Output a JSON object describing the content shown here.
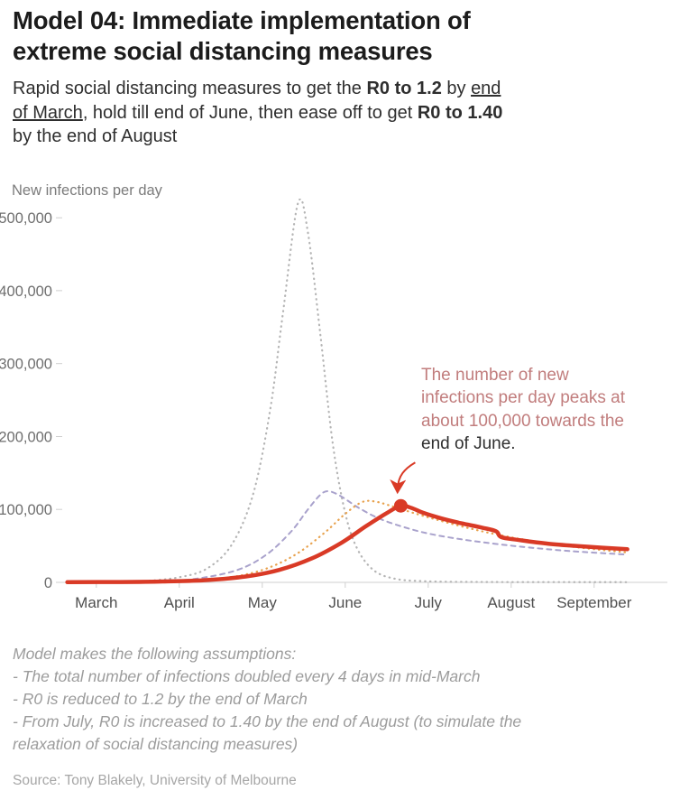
{
  "header": {
    "title_line1": "Model 04: Immediate implementation of",
    "title_line2": "extreme social distancing measures",
    "subtitle": {
      "seg1": "Rapid social distancing measures to get the ",
      "seg2_bold": "R0 to 1.2",
      "seg3": " by ",
      "seg4_underline": "end",
      "seg5_underline": "of March",
      "seg6": ", hold till end of June, then ease off to get ",
      "seg7_bold": "R0 to 1.40",
      "seg8": "by the end of August"
    }
  },
  "chart_data": {
    "type": "line",
    "title": "Model 04: Immediate implementation of extreme social distancing measures",
    "ylabel": "New infections per day",
    "xlabel": "",
    "x_unit": "months, 0 = March through 6 = September",
    "x_tick_labels": [
      "March",
      "April",
      "May",
      "June",
      "July",
      "August",
      "September"
    ],
    "y_ticks": [
      0,
      100000,
      200000,
      300000,
      400000,
      500000
    ],
    "y_tick_labels": [
      "0",
      "100,000",
      "200,000",
      "300,000",
      "400,000",
      "500,000"
    ],
    "ylim": [
      0,
      520000
    ],
    "grid": false,
    "legend": "none",
    "series": [
      {
        "id": "gray-dotted-unmitigated",
        "name": "gray dotted curve (peaks ~520,000 mid-May)",
        "style": "dotted",
        "color": "#b5b5b5",
        "width": 2.2,
        "points": [
          [
            -0.35,
            0
          ],
          [
            0,
            150
          ],
          [
            0.5,
            1200
          ],
          [
            1,
            7000
          ],
          [
            1.35,
            20000
          ],
          [
            1.65,
            55000
          ],
          [
            1.9,
            125000
          ],
          [
            2.1,
            240000
          ],
          [
            2.25,
            370000
          ],
          [
            2.43,
            520000
          ],
          [
            2.55,
            480000
          ],
          [
            2.7,
            340000
          ],
          [
            2.85,
            190000
          ],
          [
            3.0,
            95000
          ],
          [
            3.15,
            45000
          ],
          [
            3.35,
            16000
          ],
          [
            3.6,
            5000
          ],
          [
            3.9,
            1800
          ],
          [
            4.3,
            800
          ],
          [
            5,
            400
          ],
          [
            6.4,
            300
          ]
        ]
      },
      {
        "id": "purple-dashed",
        "name": "purple dashed curve (peaks ~125,000 late May)",
        "style": "dashed",
        "color": "#a9a2cc",
        "width": 2,
        "points": [
          [
            -0.35,
            0
          ],
          [
            0,
            100
          ],
          [
            0.7,
            1200
          ],
          [
            1.2,
            5000
          ],
          [
            1.7,
            17000
          ],
          [
            2.05,
            38000
          ],
          [
            2.35,
            70000
          ],
          [
            2.55,
            100000
          ],
          [
            2.7,
            120000
          ],
          [
            2.8,
            125000
          ],
          [
            2.95,
            118000
          ],
          [
            3.15,
            103000
          ],
          [
            3.4,
            88000
          ],
          [
            3.7,
            76000
          ],
          [
            4.0,
            67000
          ],
          [
            4.4,
            59000
          ],
          [
            4.8,
            53000
          ],
          [
            5.2,
            48000
          ],
          [
            5.7,
            43000
          ],
          [
            6.4,
            38000
          ]
        ]
      },
      {
        "id": "orange-dotted",
        "name": "orange dotted curve (peaks ~111,000 mid-June)",
        "style": "dotted",
        "color": "#e8a24e",
        "width": 2.2,
        "points": [
          [
            -0.35,
            0
          ],
          [
            0,
            80
          ],
          [
            0.9,
            1000
          ],
          [
            1.5,
            5000
          ],
          [
            2.0,
            17000
          ],
          [
            2.4,
            38000
          ],
          [
            2.75,
            68000
          ],
          [
            3.0,
            94000
          ],
          [
            3.2,
            110000
          ],
          [
            3.35,
            111000
          ],
          [
            3.55,
            105000
          ],
          [
            3.8,
            96000
          ],
          [
            4.1,
            86000
          ],
          [
            4.5,
            74000
          ],
          [
            4.9,
            64000
          ],
          [
            5.3,
            56000
          ],
          [
            5.8,
            48000
          ],
          [
            6.4,
            41000
          ]
        ]
      },
      {
        "id": "red-solid-model04",
        "name": "red solid curve, Model 04 (peaks ~105,000 end of June)",
        "style": "solid",
        "color": "#d93a26",
        "width": 4.5,
        "points": [
          [
            -0.35,
            300
          ],
          [
            0.3,
            500
          ],
          [
            0.8,
            1200
          ],
          [
            1.3,
            3000
          ],
          [
            1.8,
            8000
          ],
          [
            2.2,
            17000
          ],
          [
            2.6,
            33000
          ],
          [
            2.95,
            54000
          ],
          [
            3.25,
            77000
          ],
          [
            3.5,
            95000
          ],
          [
            3.67,
            105000
          ],
          [
            3.8,
            102000
          ],
          [
            3.95,
            95000
          ],
          [
            4.15,
            88000
          ],
          [
            4.4,
            81000
          ],
          [
            4.65,
            75000
          ],
          [
            4.82,
            70000
          ],
          [
            4.88,
            62000
          ],
          [
            5.1,
            58000
          ],
          [
            5.45,
            53000
          ],
          [
            5.9,
            49000
          ],
          [
            6.4,
            45500
          ]
        ]
      }
    ],
    "peak_marker": {
      "x": 3.67,
      "y": 105000,
      "value_text": "about 100,000",
      "when_text": "end of June"
    }
  },
  "annotation": {
    "text_pink": "The number of new infections per day peaks at about 100,000 towards the ",
    "text_dark": "end of June."
  },
  "assumptions": {
    "lines": [
      "Model makes the following assumptions:",
      "- The total number of infections doubled every 4 days in mid-March",
      "- R0 is reduced to 1.2 by the end of March",
      "- From July, R0 is increased to 1.40 by the end of August (to simulate the relaxation of social distancing measures)"
    ]
  },
  "source": "Source: Tony Blakely, University of Melbourne",
  "colors": {
    "red": "#d93a26",
    "orange": "#e8a24e",
    "purple": "#a9a2cc",
    "gray": "#b5b5b5",
    "annotation_pink": "#c17d7d",
    "axis_line": "#cfcfcf",
    "y_tick_text": "#6e6e6e",
    "x_tick_text": "#4f4f4f"
  }
}
